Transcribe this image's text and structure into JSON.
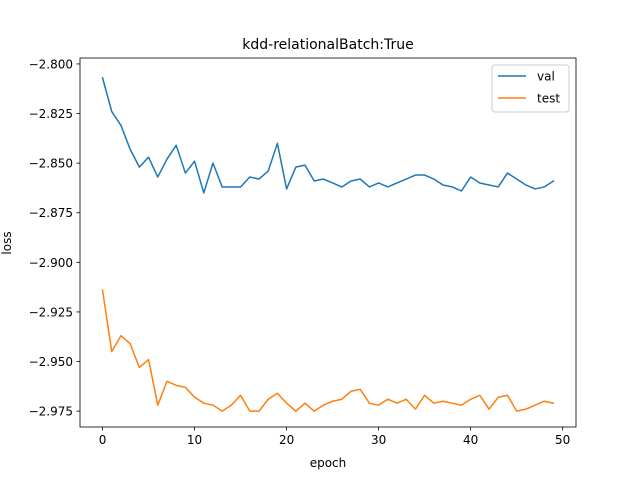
{
  "chart_data": {
    "type": "line",
    "title": "kdd-relationalBatch:True",
    "xlabel": "epoch",
    "ylabel": "loss",
    "xlim": [
      -2.45,
      51.45
    ],
    "ylim": [
      -2.983,
      -2.797
    ],
    "xticks": [
      0,
      10,
      20,
      30,
      40,
      50
    ],
    "xtick_labels": [
      "0",
      "10",
      "20",
      "30",
      "40",
      "50"
    ],
    "yticks": [
      -2.8,
      -2.825,
      -2.85,
      -2.875,
      -2.9,
      -2.925,
      -2.95,
      -2.975
    ],
    "ytick_labels": [
      "−2.800",
      "−2.825",
      "−2.850",
      "−2.875",
      "−2.900",
      "−2.925",
      "−2.950",
      "−2.975"
    ],
    "grid": false,
    "legend_position": "upper right",
    "x": [
      0,
      1,
      2,
      3,
      4,
      5,
      6,
      7,
      8,
      9,
      10,
      11,
      12,
      13,
      14,
      15,
      16,
      17,
      18,
      19,
      20,
      21,
      22,
      23,
      24,
      25,
      26,
      27,
      28,
      29,
      30,
      31,
      32,
      33,
      34,
      35,
      36,
      37,
      38,
      39,
      40,
      41,
      42,
      43,
      44,
      45,
      46,
      47,
      48,
      49
    ],
    "series": [
      {
        "name": "val",
        "color": "#1f77b4",
        "values": [
          -2.807,
          -2.824,
          -2.831,
          -2.843,
          -2.852,
          -2.847,
          -2.857,
          -2.848,
          -2.841,
          -2.855,
          -2.849,
          -2.865,
          -2.85,
          -2.862,
          -2.862,
          -2.862,
          -2.857,
          -2.858,
          -2.854,
          -2.84,
          -2.863,
          -2.852,
          -2.851,
          -2.859,
          -2.858,
          -2.86,
          -2.862,
          -2.859,
          -2.858,
          -2.862,
          -2.86,
          -2.862,
          -2.86,
          -2.858,
          -2.856,
          -2.856,
          -2.858,
          -2.861,
          -2.862,
          -2.864,
          -2.857,
          -2.86,
          -2.861,
          -2.862,
          -2.855,
          -2.858,
          -2.861,
          -2.863,
          -2.862,
          -2.859
        ]
      },
      {
        "name": "test",
        "color": "#ff7f0e",
        "values": [
          -2.914,
          -2.945,
          -2.937,
          -2.941,
          -2.953,
          -2.949,
          -2.972,
          -2.96,
          -2.962,
          -2.963,
          -2.968,
          -2.971,
          -2.972,
          -2.975,
          -2.972,
          -2.967,
          -2.975,
          -2.975,
          -2.969,
          -2.966,
          -2.971,
          -2.975,
          -2.971,
          -2.975,
          -2.972,
          -2.97,
          -2.969,
          -2.965,
          -2.964,
          -2.971,
          -2.972,
          -2.969,
          -2.971,
          -2.969,
          -2.974,
          -2.967,
          -2.971,
          -2.97,
          -2.971,
          -2.972,
          -2.969,
          -2.967,
          -2.974,
          -2.968,
          -2.967,
          -2.975,
          -2.974,
          -2.972,
          -2.97,
          -2.971
        ]
      }
    ]
  }
}
